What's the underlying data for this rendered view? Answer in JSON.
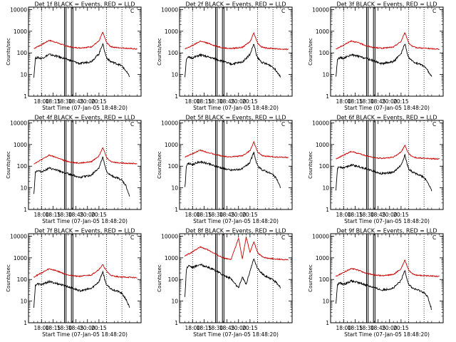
{
  "chart_data": [
    {
      "type": "line",
      "title": "Det 1f BLACK = Events, RED = LLD",
      "corner_mark": "C",
      "xlabel": "Start Time (07-Jan-05 18:48:20)",
      "ylabel": "Counts/sec",
      "yscale": "log",
      "ylim": [
        1,
        13000
      ],
      "xlim": [
        -2,
        145
      ],
      "x_unit": "minutes after 17:45",
      "x_tick_labels": [
        "18:00",
        "18:15",
        "18:30",
        "18:45",
        "20:00",
        "20:15"
      ],
      "y_tick_labels": [
        "1",
        "10",
        "100",
        "1000",
        "10000"
      ],
      "dotted_lines_x": [
        15,
        100,
        120
      ],
      "solid_lines_x": [
        45,
        47,
        54,
        56
      ],
      "series": [
        {
          "color": "#cc0000",
          "x": [
            5,
            15,
            25,
            35,
            45,
            55,
            65,
            80,
            90,
            95,
            100,
            105,
            110,
            120,
            130,
            140
          ],
          "values": [
            160,
            240,
            380,
            300,
            220,
            180,
            170,
            190,
            350,
            900,
            300,
            200,
            180,
            170,
            160,
            150
          ]
        },
        {
          "color": "#000000",
          "x": [
            5,
            7,
            10,
            15,
            25,
            35,
            45,
            55,
            65,
            80,
            90,
            95,
            98,
            100,
            105,
            110,
            115,
            120,
            125,
            130
          ],
          "values": [
            8,
            55,
            62,
            55,
            85,
            70,
            55,
            42,
            32,
            40,
            90,
            270,
            100,
            60,
            40,
            35,
            30,
            25,
            15,
            8
          ]
        }
      ]
    },
    {
      "type": "line",
      "title": "Det 2f BLACK = Events, RED = LLD",
      "corner_mark": "C",
      "xlabel": "Start Time (07-Jan-05 18:48:20)",
      "ylabel": "Counts/sec",
      "yscale": "log",
      "ylim": [
        1,
        13000
      ],
      "xlim": [
        -2,
        145
      ],
      "x_unit": "minutes after 17:45",
      "x_tick_labels": [
        "18:00",
        "18:15",
        "18:30",
        "18:45",
        "20:00",
        "20:15"
      ],
      "y_tick_labels": [
        "1",
        "10",
        "100",
        "1000",
        "10000"
      ],
      "dotted_lines_x": [
        15,
        100,
        120
      ],
      "solid_lines_x": [
        45,
        47,
        54,
        56
      ],
      "series": [
        {
          "color": "#cc0000",
          "x": [
            5,
            15,
            25,
            35,
            45,
            55,
            65,
            80,
            90,
            95,
            100,
            105,
            110,
            120,
            130,
            140
          ],
          "values": [
            150,
            220,
            350,
            280,
            210,
            170,
            160,
            180,
            330,
            850,
            280,
            190,
            170,
            160,
            150,
            145
          ]
        },
        {
          "color": "#000000",
          "x": [
            5,
            7,
            10,
            15,
            25,
            35,
            45,
            55,
            65,
            80,
            90,
            95,
            98,
            100,
            105,
            110,
            115,
            120,
            125,
            130
          ],
          "values": [
            8,
            55,
            62,
            58,
            80,
            65,
            52,
            40,
            30,
            38,
            85,
            260,
            95,
            58,
            38,
            32,
            28,
            22,
            14,
            8
          ]
        }
      ]
    },
    {
      "type": "line",
      "title": "Det 3f BLACK = Events, RED = LLD",
      "corner_mark": "C",
      "xlabel": "Start Time (07-Jan-05 18:48:20)",
      "ylabel": "Counts/sec",
      "yscale": "log",
      "ylim": [
        1,
        13000
      ],
      "xlim": [
        -2,
        145
      ],
      "x_unit": "minutes after 17:45",
      "x_tick_labels": [
        "18:00",
        "18:15",
        "18:30",
        "18:45",
        "20:00",
        "20:15"
      ],
      "y_tick_labels": [
        "1",
        "10",
        "100",
        "1000",
        "10000"
      ],
      "dotted_lines_x": [
        15,
        100,
        120
      ],
      "solid_lines_x": [
        45,
        47,
        54,
        56
      ],
      "series": [
        {
          "color": "#cc0000",
          "x": [
            5,
            15,
            25,
            35,
            45,
            55,
            65,
            80,
            90,
            95,
            100,
            105,
            110,
            120,
            130,
            140
          ],
          "values": [
            150,
            230,
            360,
            290,
            210,
            175,
            165,
            185,
            340,
            880,
            290,
            195,
            175,
            165,
            155,
            150
          ]
        },
        {
          "color": "#000000",
          "x": [
            5,
            7,
            10,
            15,
            25,
            35,
            45,
            55,
            65,
            80,
            90,
            95,
            98,
            100,
            105,
            110,
            115,
            120,
            125,
            130
          ],
          "values": [
            8,
            50,
            60,
            55,
            82,
            68,
            55,
            42,
            32,
            40,
            88,
            270,
            100,
            60,
            40,
            34,
            30,
            25,
            15,
            8
          ]
        }
      ]
    },
    {
      "type": "line",
      "title": "Det 4f BLACK = Events, RED = LLD",
      "corner_mark": "C",
      "xlabel": "Start Time (07-Jan-05 18:48:20)",
      "ylabel": "Counts/sec",
      "yscale": "log",
      "ylim": [
        1,
        13000
      ],
      "xlim": [
        -2,
        145
      ],
      "x_unit": "minutes after 17:45",
      "x_tick_labels": [
        "18:00",
        "18:15",
        "18:30",
        "18:45",
        "20:00",
        "20:15"
      ],
      "y_tick_labels": [
        "1",
        "10",
        "100",
        "1000",
        "10000"
      ],
      "dotted_lines_x": [
        15,
        100,
        120
      ],
      "solid_lines_x": [
        45,
        47,
        54,
        56
      ],
      "series": [
        {
          "color": "#cc0000",
          "x": [
            5,
            15,
            25,
            35,
            45,
            55,
            65,
            80,
            90,
            95,
            100,
            105,
            110,
            120,
            130,
            140
          ],
          "values": [
            130,
            200,
            320,
            250,
            180,
            150,
            140,
            160,
            300,
            750,
            250,
            170,
            150,
            140,
            135,
            130
          ]
        },
        {
          "color": "#000000",
          "x": [
            5,
            7,
            10,
            15,
            25,
            35,
            45,
            55,
            65,
            80,
            90,
            95,
            98,
            100,
            105,
            110,
            115,
            120,
            125,
            130
          ],
          "values": [
            5,
            55,
            62,
            55,
            80,
            65,
            50,
            40,
            30,
            38,
            85,
            250,
            95,
            55,
            38,
            32,
            28,
            22,
            13,
            4
          ]
        }
      ]
    },
    {
      "type": "line",
      "title": "Det 5f BLACK = Events, RED = LLD",
      "corner_mark": "C",
      "xlabel": "Start Time (07-Jan-05 18:48:20)",
      "ylabel": "Counts/sec",
      "yscale": "log",
      "ylim": [
        1,
        13000
      ],
      "xlim": [
        -2,
        145
      ],
      "x_unit": "minutes after 17:45",
      "x_tick_labels": [
        "18:00",
        "18:15",
        "18:30",
        "18:45",
        "20:00",
        "20:15"
      ],
      "y_tick_labels": [
        "1",
        "10",
        "100",
        "1000",
        "10000"
      ],
      "dotted_lines_x": [
        15,
        100,
        120
      ],
      "solid_lines_x": [
        45,
        47,
        54,
        56
      ],
      "series": [
        {
          "color": "#cc0000",
          "x": [
            5,
            15,
            25,
            35,
            45,
            55,
            65,
            80,
            90,
            95,
            100,
            105,
            110,
            120,
            130,
            140
          ],
          "values": [
            260,
            380,
            550,
            430,
            340,
            290,
            270,
            300,
            520,
            1300,
            450,
            320,
            290,
            270,
            260,
            255
          ]
        },
        {
          "color": "#000000",
          "x": [
            5,
            7,
            10,
            15,
            25,
            35,
            45,
            55,
            65,
            80,
            90,
            95,
            98,
            100,
            105,
            110,
            115,
            120,
            125,
            130
          ],
          "values": [
            10,
            110,
            130,
            120,
            160,
            130,
            100,
            80,
            65,
            75,
            150,
            430,
            160,
            100,
            70,
            60,
            50,
            40,
            25,
            10
          ]
        }
      ]
    },
    {
      "type": "line",
      "title": "Det 6f BLACK = Events, RED = LLD",
      "corner_mark": "C",
      "xlabel": "Start Time (07-Jan-05 18:48:20)",
      "ylabel": "Counts/sec",
      "yscale": "log",
      "ylim": [
        1,
        13000
      ],
      "xlim": [
        -2,
        145
      ],
      "x_unit": "minutes after 17:45",
      "x_tick_labels": [
        "18:00",
        "18:15",
        "18:30",
        "18:45",
        "20:00",
        "20:15"
      ],
      "y_tick_labels": [
        "1",
        "10",
        "100",
        "1000",
        "10000"
      ],
      "dotted_lines_x": [
        15,
        100,
        120
      ],
      "solid_lines_x": [
        45,
        47,
        54,
        56
      ],
      "series": [
        {
          "color": "#cc0000",
          "x": [
            5,
            15,
            25,
            35,
            45,
            55,
            65,
            80,
            90,
            95,
            100,
            105,
            110,
            120,
            130,
            140
          ],
          "values": [
            220,
            320,
            480,
            380,
            300,
            250,
            230,
            260,
            450,
            900,
            380,
            270,
            245,
            230,
            220,
            215
          ]
        },
        {
          "color": "#000000",
          "x": [
            5,
            7,
            10,
            15,
            25,
            35,
            45,
            55,
            65,
            80,
            90,
            95,
            98,
            100,
            105,
            110,
            115,
            120,
            125,
            130
          ],
          "values": [
            8,
            80,
            95,
            85,
            115,
            95,
            75,
            58,
            45,
            52,
            110,
            330,
            120,
            75,
            52,
            45,
            38,
            30,
            18,
            7
          ]
        }
      ]
    },
    {
      "type": "line",
      "title": "Det 7f BLACK = Events, RED = LLD",
      "corner_mark": "C",
      "xlabel": "Start Time (07-Jan-05 18:48:20)",
      "ylabel": "Counts/sec",
      "yscale": "log",
      "ylim": [
        1,
        13000
      ],
      "xlim": [
        -2,
        145
      ],
      "x_unit": "minutes after 17:45",
      "x_tick_labels": [
        "18:00",
        "18:15",
        "18:30",
        "18:45",
        "20:00",
        "20:15"
      ],
      "y_tick_labels": [
        "1",
        "10",
        "100",
        "1000",
        "10000"
      ],
      "dotted_lines_x": [
        15,
        100,
        120
      ],
      "solid_lines_x": [
        45,
        47,
        54,
        56
      ],
      "series": [
        {
          "color": "#cc0000",
          "x": [
            5,
            15,
            25,
            35,
            45,
            55,
            65,
            80,
            90,
            95,
            100,
            105,
            110,
            120,
            130,
            140
          ],
          "values": [
            130,
            200,
            310,
            250,
            180,
            150,
            140,
            160,
            290,
            480,
            240,
            160,
            140,
            130,
            125,
            120
          ]
        },
        {
          "color": "#000000",
          "x": [
            5,
            7,
            10,
            15,
            25,
            35,
            45,
            55,
            65,
            80,
            90,
            95,
            98,
            100,
            105,
            110,
            115,
            120,
            125,
            130
          ],
          "values": [
            5,
            55,
            62,
            58,
            80,
            65,
            52,
            40,
            30,
            38,
            80,
            230,
            90,
            55,
            38,
            32,
            28,
            22,
            13,
            5
          ]
        }
      ]
    },
    {
      "type": "line",
      "title": "Det 8f BLACK = Events, RED = LLD",
      "corner_mark": "C",
      "xlabel": "Start Time (07-Jan-05 18:48:20)",
      "ylabel": "Counts/sec",
      "yscale": "log",
      "ylim": [
        1,
        13000
      ],
      "xlim": [
        -2,
        145
      ],
      "x_unit": "minutes after 17:45",
      "x_tick_labels": [
        "18:00",
        "18:15",
        "18:30",
        "18:45",
        "20:00",
        "20:15"
      ],
      "y_tick_labels": [
        "1",
        "10",
        "100",
        "1000",
        "10000"
      ],
      "dotted_lines_x": [
        15,
        100,
        120
      ],
      "solid_lines_x": [
        45,
        47,
        54,
        56
      ],
      "series": [
        {
          "color": "#cc0000",
          "x": [
            5,
            15,
            25,
            35,
            45,
            55,
            65,
            75,
            80,
            85,
            90,
            95,
            100,
            105,
            110,
            120,
            130,
            140
          ],
          "values": [
            1200,
            1900,
            3200,
            2300,
            1500,
            1000,
            800,
            8000,
            900,
            9000,
            1800,
            5500,
            1700,
            1200,
            1000,
            900,
            850,
            800
          ]
        },
        {
          "color": "#000000",
          "x": [
            5,
            7,
            10,
            15,
            25,
            35,
            45,
            55,
            65,
            75,
            80,
            85,
            90,
            95,
            100,
            105,
            110,
            115,
            120,
            125,
            130
          ],
          "values": [
            15,
            320,
            450,
            360,
            500,
            360,
            260,
            160,
            110,
            40,
            130,
            60,
            250,
            900,
            320,
            200,
            140,
            120,
            95,
            70,
            40
          ]
        }
      ]
    },
    {
      "type": "line",
      "title": "Det 9f BLACK = Events, RED = LLD",
      "corner_mark": "C",
      "xlabel": "Start Time (07-Jan-05 18:48:20)",
      "ylabel": "Counts/sec",
      "yscale": "log",
      "ylim": [
        1,
        13000
      ],
      "xlim": [
        -2,
        145
      ],
      "x_unit": "minutes after 17:45",
      "x_tick_labels": [
        "18:00",
        "18:15",
        "18:30",
        "18:45",
        "20:00",
        "20:15"
      ],
      "y_tick_labels": [
        "1",
        "10",
        "100",
        "1000",
        "10000"
      ],
      "dotted_lines_x": [
        15,
        100,
        120
      ],
      "solid_lines_x": [
        45,
        47,
        54,
        56
      ],
      "series": [
        {
          "color": "#cc0000",
          "x": [
            5,
            15,
            25,
            35,
            45,
            55,
            65,
            80,
            90,
            95,
            100,
            105,
            110,
            120,
            130,
            140
          ],
          "values": [
            140,
            210,
            330,
            260,
            190,
            160,
            150,
            170,
            310,
            800,
            260,
            180,
            160,
            150,
            145,
            140
          ]
        },
        {
          "color": "#000000",
          "x": [
            5,
            7,
            10,
            15,
            25,
            35,
            45,
            55,
            65,
            80,
            90,
            95,
            98,
            100,
            105,
            110,
            115,
            120,
            125,
            130
          ],
          "values": [
            7,
            60,
            68,
            60,
            85,
            70,
            55,
            42,
            32,
            40,
            88,
            270,
            100,
            60,
            40,
            34,
            30,
            25,
            15,
            4
          ]
        }
      ]
    }
  ]
}
